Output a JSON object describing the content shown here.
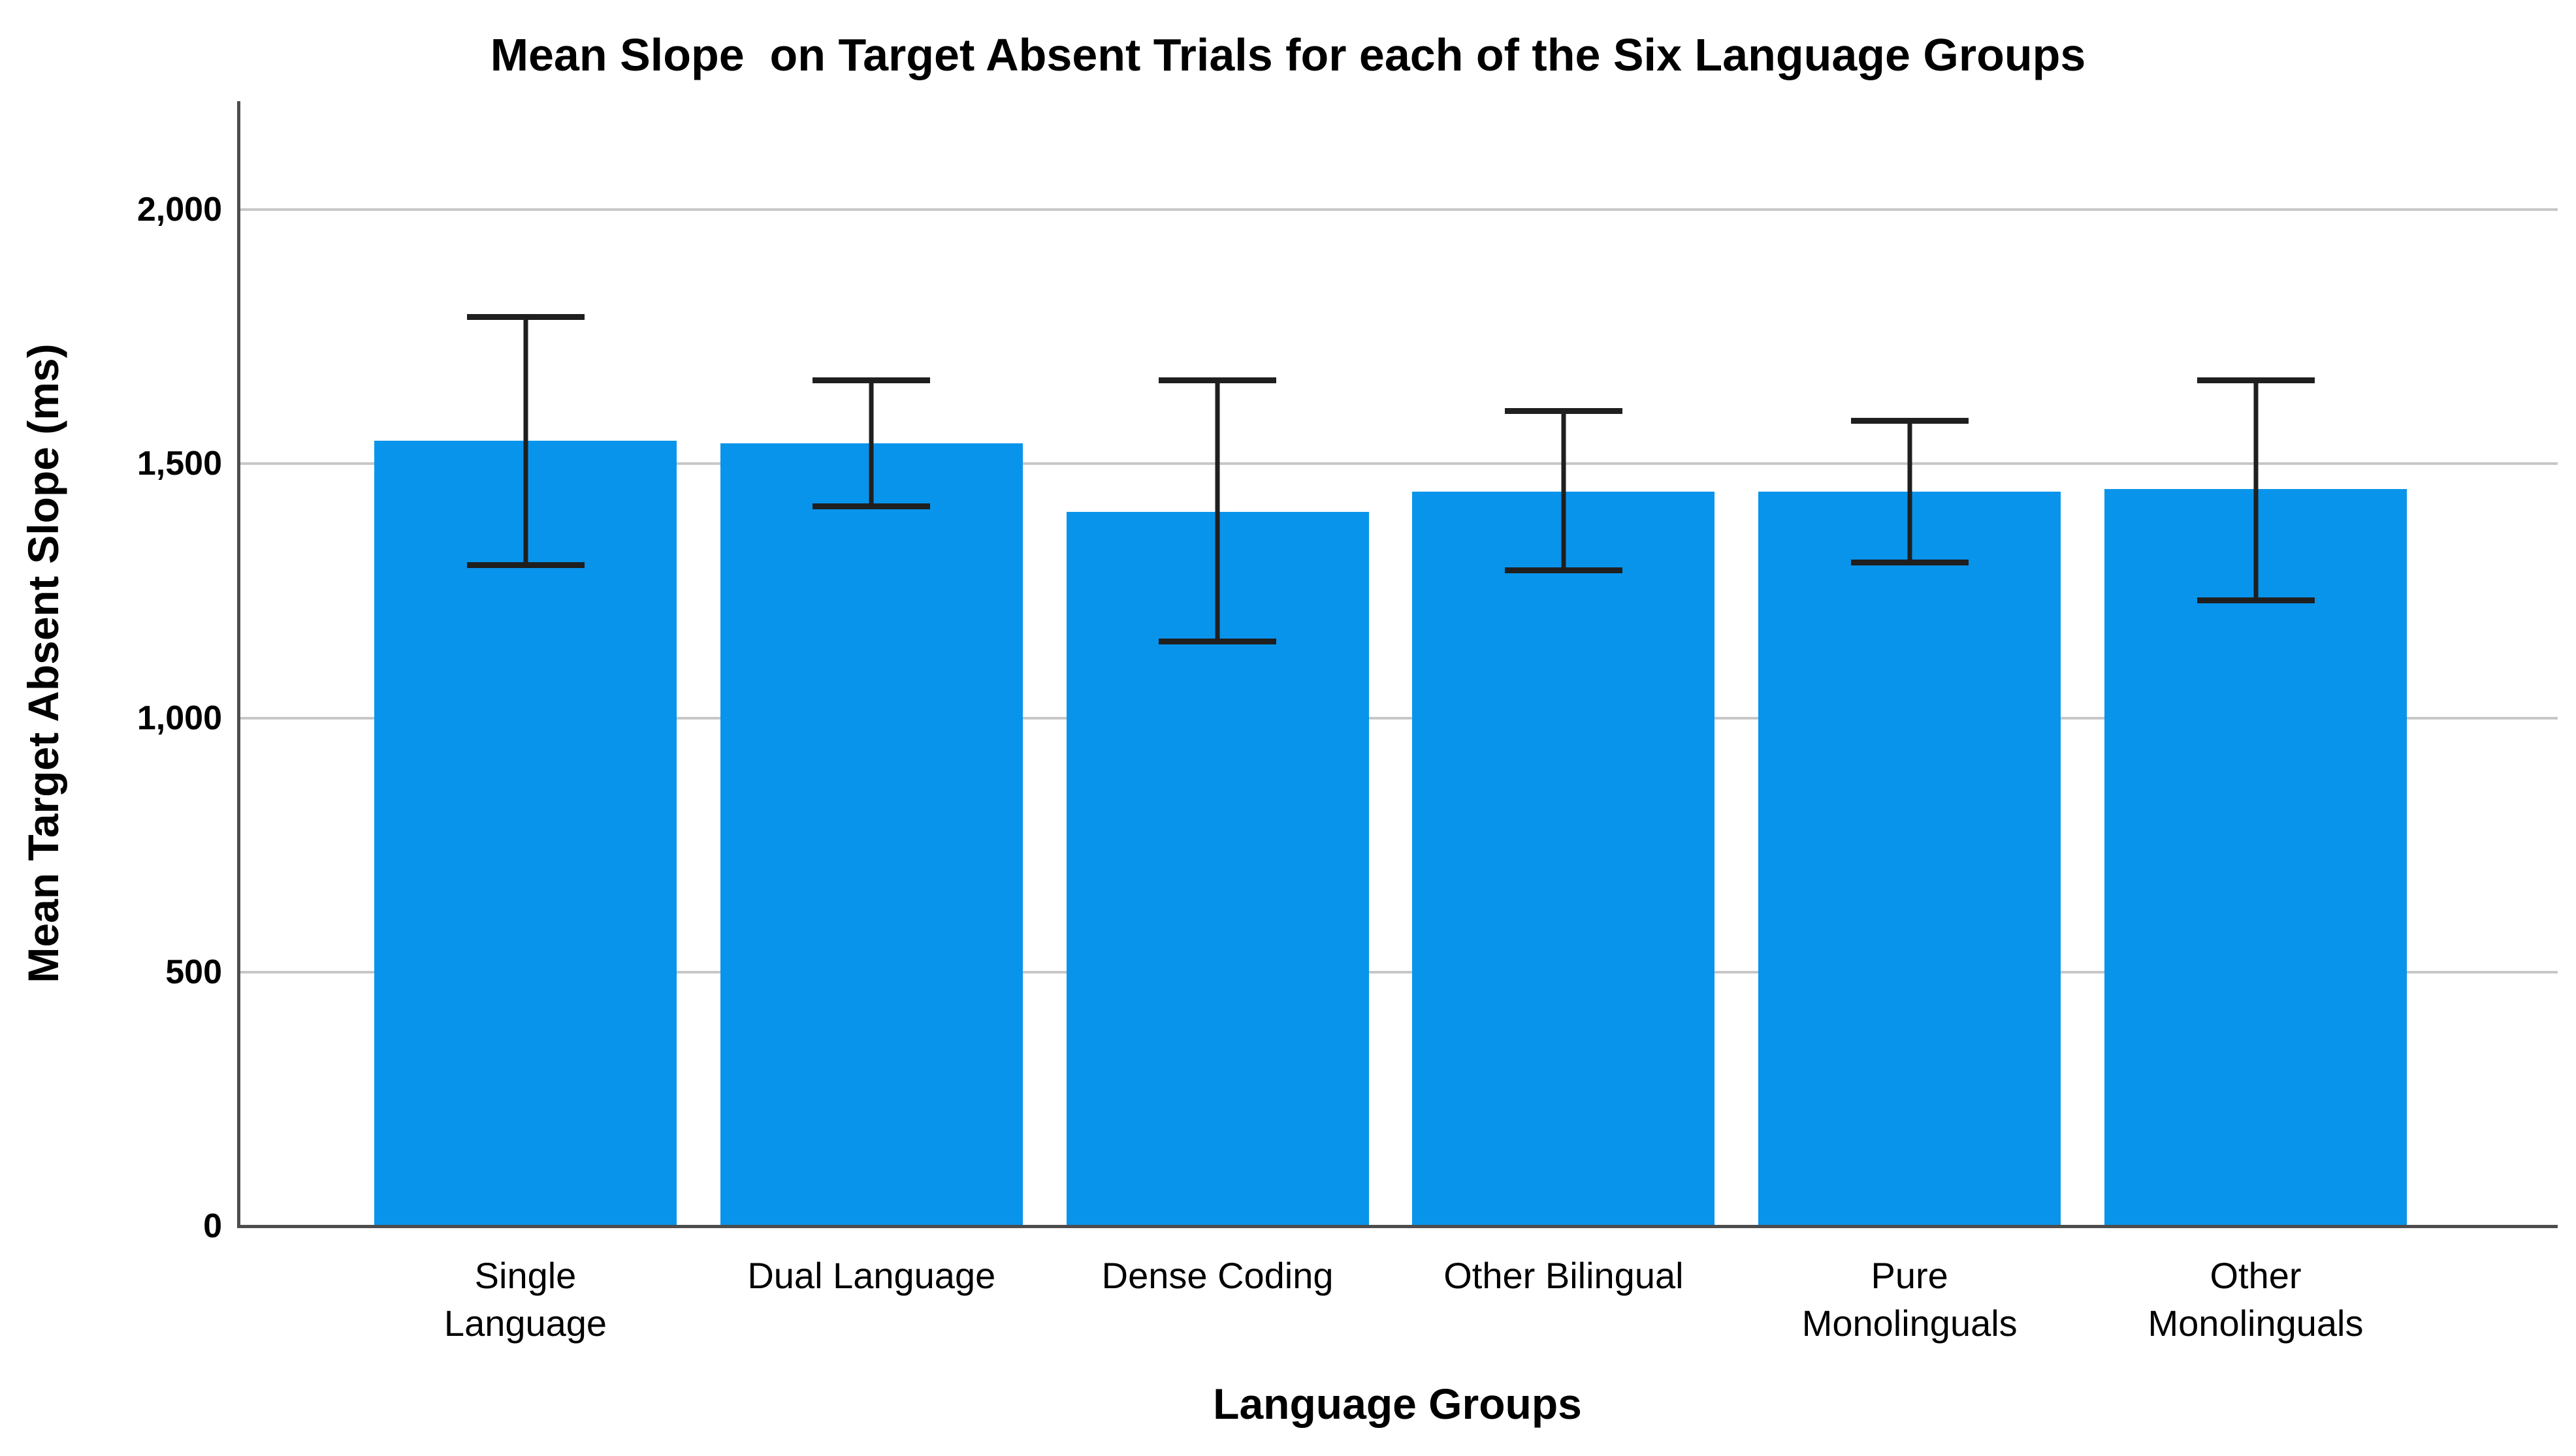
{
  "chart_data": {
    "type": "bar",
    "title": "Mean Slope  on Target Absent Trials for each of the Six Language Groups",
    "xlabel": "Language Groups",
    "ylabel": "Mean Target Absent Slope (ms)",
    "categories": [
      "Single Language",
      "Dual Language",
      "Dense Coding",
      "Other Bilingual",
      "Pure Monolinguals",
      "Other Monolinguals"
    ],
    "category_label_lines": [
      [
        "Single",
        "Language"
      ],
      [
        "Dual Language"
      ],
      [
        "Dense Coding"
      ],
      [
        "Other Bilingual"
      ],
      [
        "Pure",
        "Monolinguals"
      ],
      [
        "Other",
        "Monolinguals"
      ]
    ],
    "series": [
      {
        "name": "Mean Target Absent Slope (ms)",
        "values": [
          1545,
          1540,
          1405,
          1445,
          1445,
          1450
        ]
      }
    ],
    "error_bars": {
      "upper": [
        1795,
        1670,
        1670,
        1610,
        1590,
        1670
      ],
      "lower": [
        1295,
        1410,
        1145,
        1285,
        1300,
        1225
      ]
    },
    "yticks": [
      0,
      500,
      1000,
      1500,
      2000
    ],
    "ytick_labels": [
      "0",
      "500",
      "1,000",
      "1,500",
      "2,000"
    ],
    "ylim": [
      0,
      2215
    ],
    "grid": "horizontal-only",
    "legend": "none",
    "colors": {
      "bar": "#0994EB",
      "gridline": "#C7C7C7",
      "axis": "#4D4D4D",
      "error_bar": "#1F1F1F",
      "text": "#000000",
      "background": "#FFFFFF"
    }
  }
}
